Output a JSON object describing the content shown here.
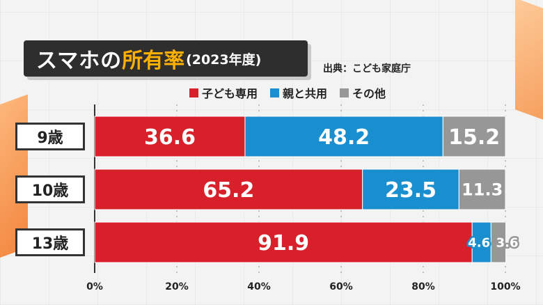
{
  "title": {
    "main": "スマホの",
    "accent": "所有率",
    "year": "(2023年度)"
  },
  "source": "出典：こども家庭庁",
  "chart_data": {
    "type": "bar",
    "orientation": "horizontal",
    "stacked": true,
    "categories": [
      "9歳",
      "10歳",
      "13歳"
    ],
    "series": [
      {
        "name": "子ども専用",
        "values": [
          36.6,
          65.2,
          91.9
        ],
        "color": "#d7202a",
        "labels": [
          "36.6",
          "65.2",
          "91.9"
        ]
      },
      {
        "name": "親と共用",
        "values": [
          48.2,
          23.5,
          4.6
        ],
        "color": "#1a8fd0",
        "labels": [
          "48.2",
          "23.5",
          "4.6"
        ]
      },
      {
        "name": "その他",
        "values": [
          15.2,
          11.3,
          3.6
        ],
        "color": "#979797",
        "labels": [
          "15.2",
          "11.3",
          "3.6"
        ]
      }
    ],
    "xlim": [
      0,
      100
    ],
    "xticks": [
      "0%",
      "20%",
      "40%",
      "60%",
      "80%",
      "100%"
    ],
    "grid": true
  }
}
